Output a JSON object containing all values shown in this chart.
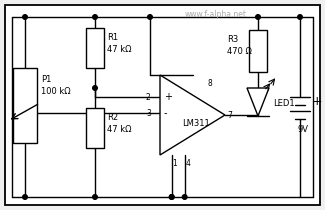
{
  "bg_color": "#f0f0f0",
  "line_color": "#000000",
  "watermark": "www.f-alpha.net",
  "watermark_color": "#aaaaaa",
  "P1_label": "P1",
  "P1_value": "100 kΩ",
  "R1_label": "R1",
  "R1_value": "47 kΩ",
  "R2_label": "R2",
  "R2_value": "47 kΩ",
  "R3_label": "R3",
  "R3_value": "470 Ω",
  "LED_label": "LED1",
  "IC_label": "LM311",
  "BAT_value": "9V",
  "plus_sign": "+",
  "pin2": "2",
  "pin3": "3",
  "pin4": "4",
  "pin7": "7",
  "pin8": "8",
  "pin1": "1"
}
